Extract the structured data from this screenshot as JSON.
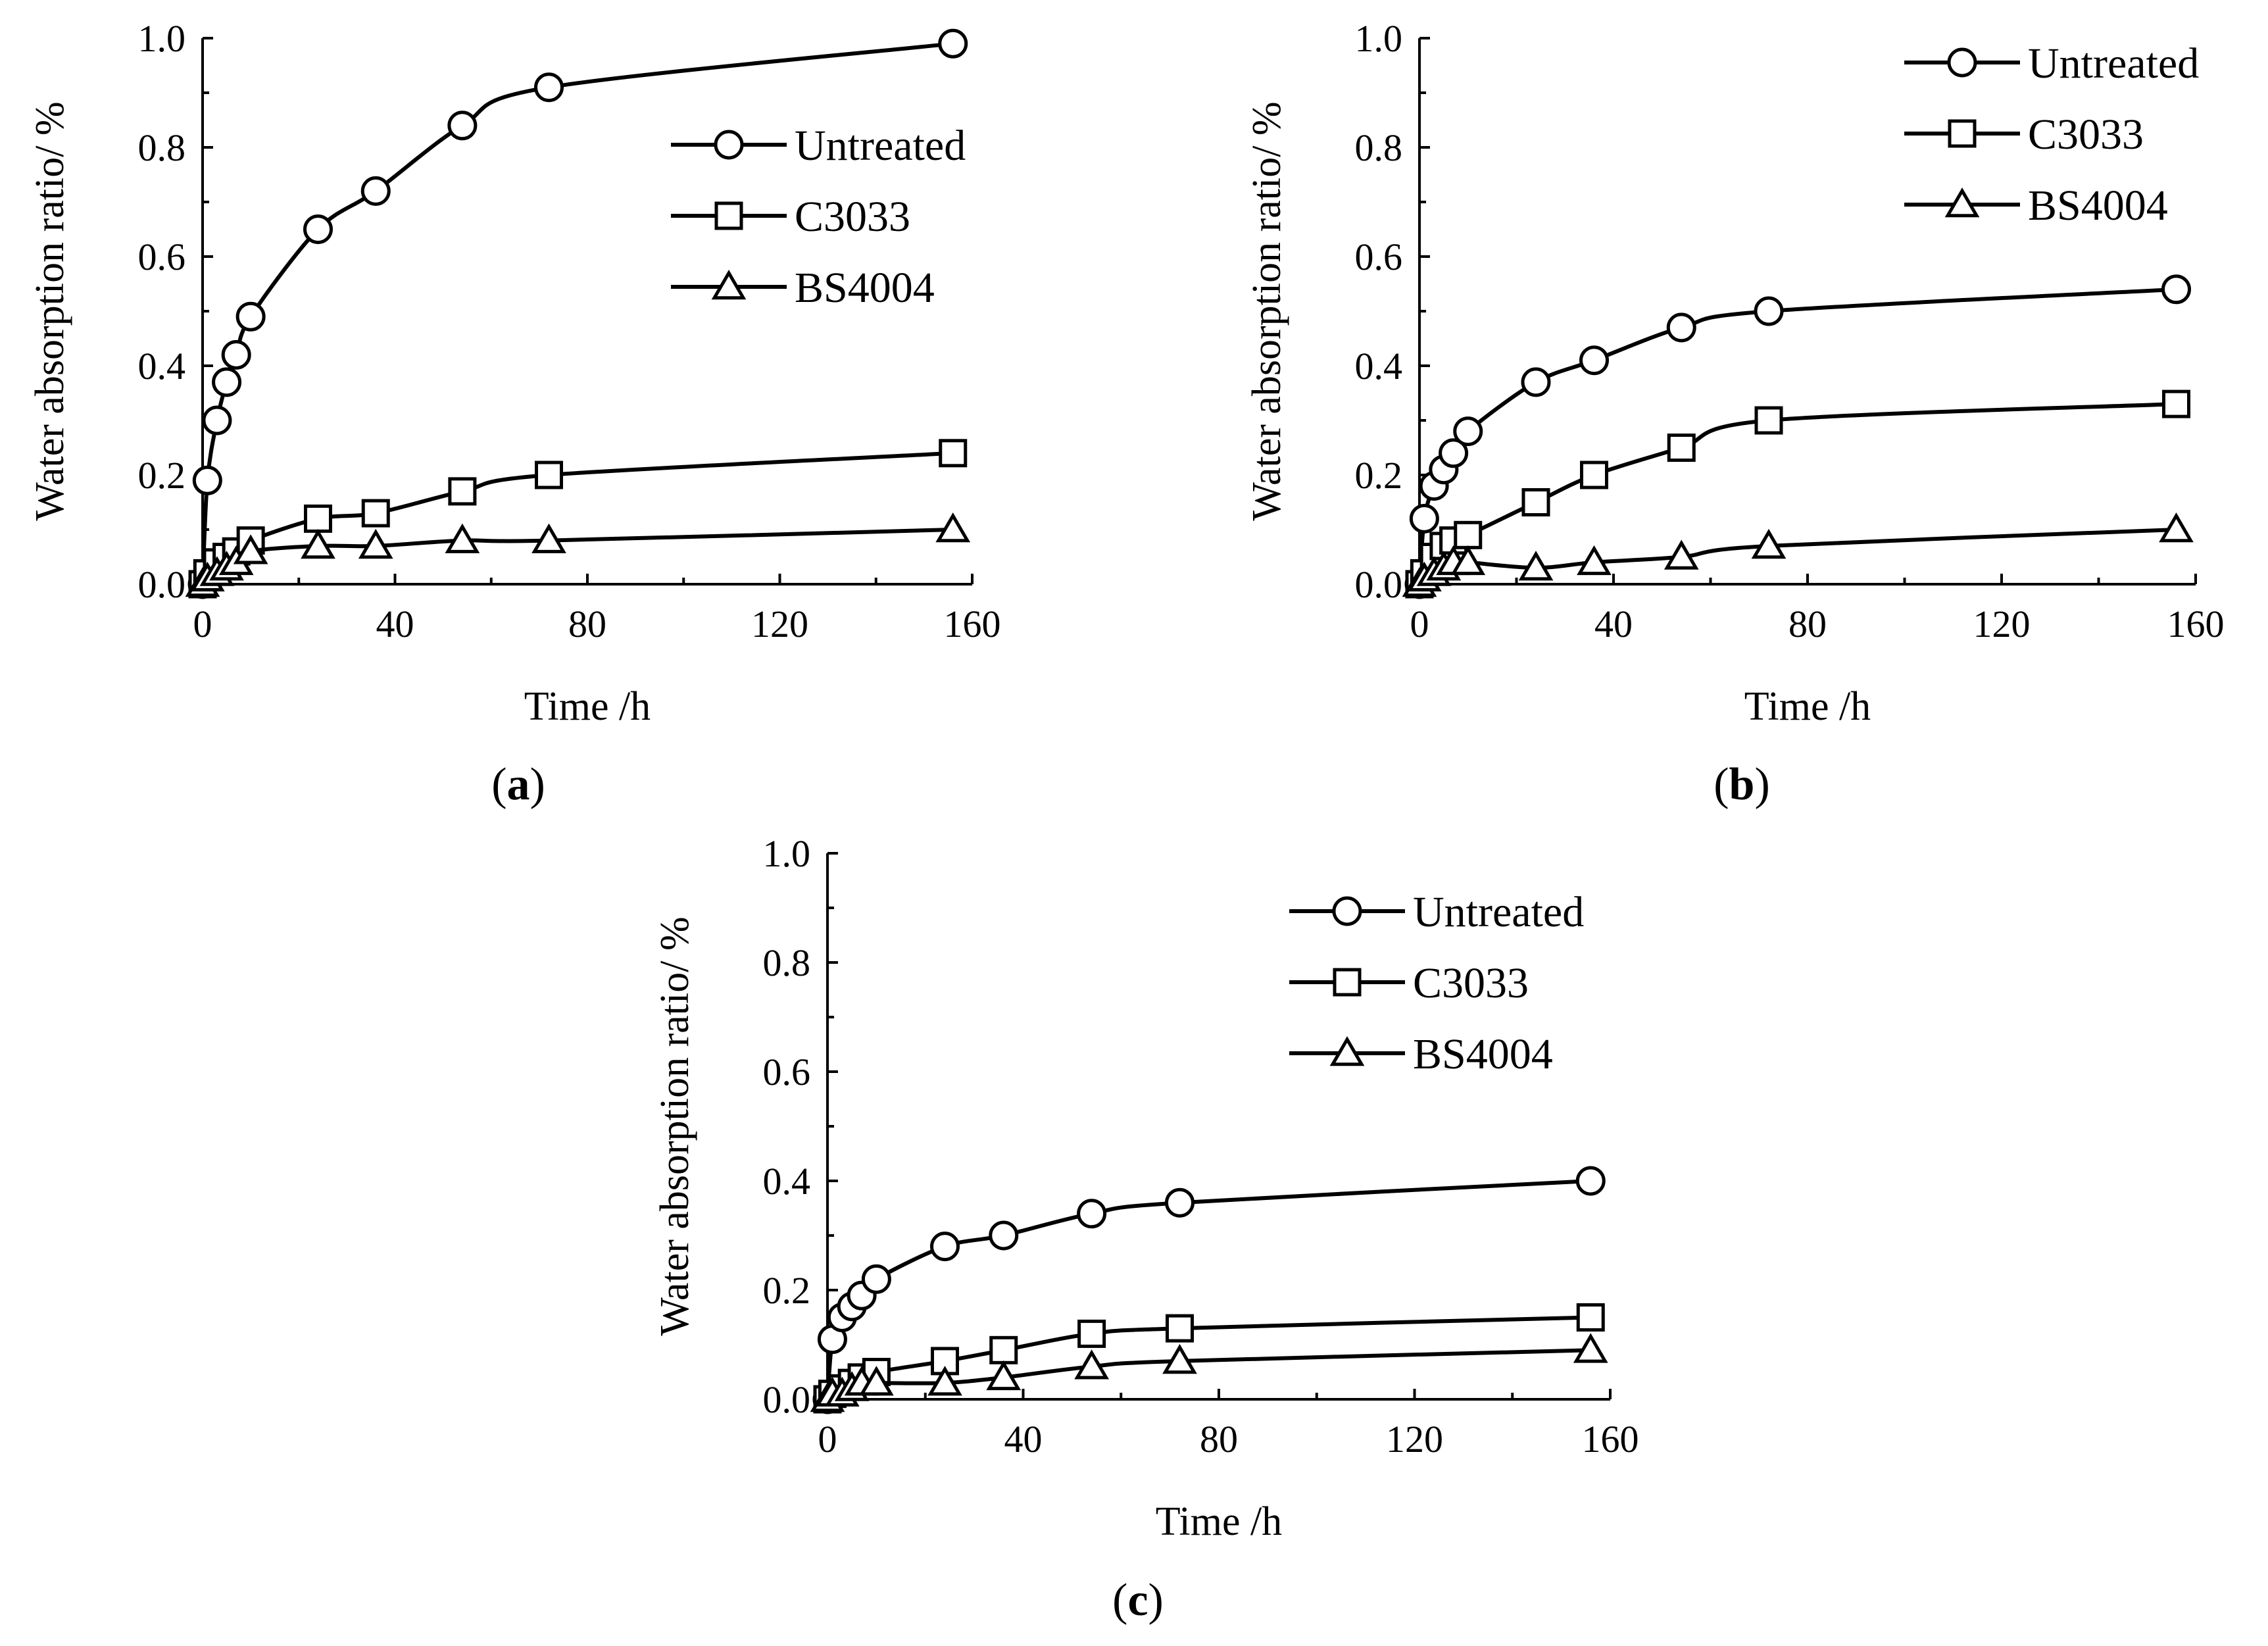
{
  "chart_data": [
    {
      "type": "line",
      "panel_label": "a",
      "xlabel": "Time /h",
      "ylabel": "Water absorption ratio/ %",
      "xlim": [
        0,
        160
      ],
      "ylim": [
        0,
        1.0
      ],
      "xticks": [
        "0",
        "40",
        "80",
        "120",
        "160"
      ],
      "yticks": [
        "0.0",
        "0.2",
        "0.4",
        "0.6",
        "0.8",
        "1.0"
      ],
      "legend_position": "top-right",
      "series": [
        {
          "name": "Untreated",
          "marker": "circle",
          "x": [
            0,
            1,
            3,
            5,
            7,
            10,
            24,
            36,
            54,
            72,
            156
          ],
          "y": [
            0,
            0.19,
            0.3,
            0.37,
            0.42,
            0.49,
            0.65,
            0.72,
            0.84,
            0.91,
            0.99
          ]
        },
        {
          "name": "C3033",
          "marker": "square",
          "x": [
            0,
            1,
            3,
            5,
            7,
            10,
            24,
            36,
            54,
            72,
            156
          ],
          "y": [
            0,
            0.02,
            0.04,
            0.05,
            0.06,
            0.08,
            0.12,
            0.13,
            0.17,
            0.2,
            0.24
          ]
        },
        {
          "name": "BS4004",
          "marker": "triangle",
          "x": [
            0,
            1,
            3,
            5,
            7,
            10,
            24,
            36,
            54,
            72,
            156
          ],
          "y": [
            0,
            0.01,
            0.02,
            0.03,
            0.04,
            0.06,
            0.07,
            0.07,
            0.08,
            0.08,
            0.1
          ]
        }
      ]
    },
    {
      "type": "line",
      "panel_label": "b",
      "xlabel": "Time /h",
      "ylabel": "Water absorption ratio/ %",
      "xlim": [
        0,
        160
      ],
      "ylim": [
        0,
        1.0
      ],
      "xticks": [
        "0",
        "40",
        "80",
        "120",
        "160"
      ],
      "yticks": [
        "0.0",
        "0.2",
        "0.4",
        "0.6",
        "0.8",
        "1.0"
      ],
      "legend_position": "top-right",
      "series": [
        {
          "name": "Untreated",
          "marker": "circle",
          "x": [
            0,
            1,
            3,
            5,
            7,
            10,
            24,
            36,
            54,
            72,
            156
          ],
          "y": [
            0,
            0.12,
            0.18,
            0.21,
            0.24,
            0.28,
            0.37,
            0.41,
            0.47,
            0.5,
            0.54
          ]
        },
        {
          "name": "C3033",
          "marker": "square",
          "x": [
            0,
            1,
            3,
            5,
            7,
            10,
            24,
            36,
            54,
            72,
            156
          ],
          "y": [
            0,
            0.02,
            0.05,
            0.07,
            0.08,
            0.09,
            0.15,
            0.2,
            0.25,
            0.3,
            0.33
          ]
        },
        {
          "name": "BS4004",
          "marker": "triangle",
          "x": [
            0,
            1,
            3,
            5,
            7,
            10,
            24,
            36,
            54,
            72,
            156
          ],
          "y": [
            0,
            0.01,
            0.02,
            0.03,
            0.04,
            0.04,
            0.03,
            0.04,
            0.05,
            0.07,
            0.1
          ]
        }
      ]
    },
    {
      "type": "line",
      "panel_label": "c",
      "xlabel": "Time /h",
      "ylabel": "Water absorption ratio/ %",
      "xlim": [
        0,
        160
      ],
      "ylim": [
        0,
        1.0
      ],
      "xticks": [
        "0",
        "40",
        "80",
        "120",
        "160"
      ],
      "yticks": [
        "0.0",
        "0.2",
        "0.4",
        "0.6",
        "0.8",
        "1.0"
      ],
      "legend_position": "top-right",
      "series": [
        {
          "name": "Untreated",
          "marker": "circle",
          "x": [
            0,
            1,
            3,
            5,
            7,
            10,
            24,
            36,
            54,
            72,
            156
          ],
          "y": [
            0,
            0.11,
            0.15,
            0.17,
            0.19,
            0.22,
            0.28,
            0.3,
            0.34,
            0.36,
            0.4
          ]
        },
        {
          "name": "C3033",
          "marker": "square",
          "x": [
            0,
            1,
            3,
            5,
            7,
            10,
            24,
            36,
            54,
            72,
            156
          ],
          "y": [
            0,
            0.01,
            0.02,
            0.03,
            0.04,
            0.05,
            0.07,
            0.09,
            0.12,
            0.13,
            0.15
          ]
        },
        {
          "name": "BS4004",
          "marker": "triangle",
          "x": [
            0,
            1,
            3,
            5,
            7,
            10,
            24,
            36,
            54,
            72,
            156
          ],
          "y": [
            0,
            0.01,
            0.01,
            0.02,
            0.03,
            0.03,
            0.03,
            0.04,
            0.06,
            0.07,
            0.09
          ]
        }
      ]
    }
  ]
}
